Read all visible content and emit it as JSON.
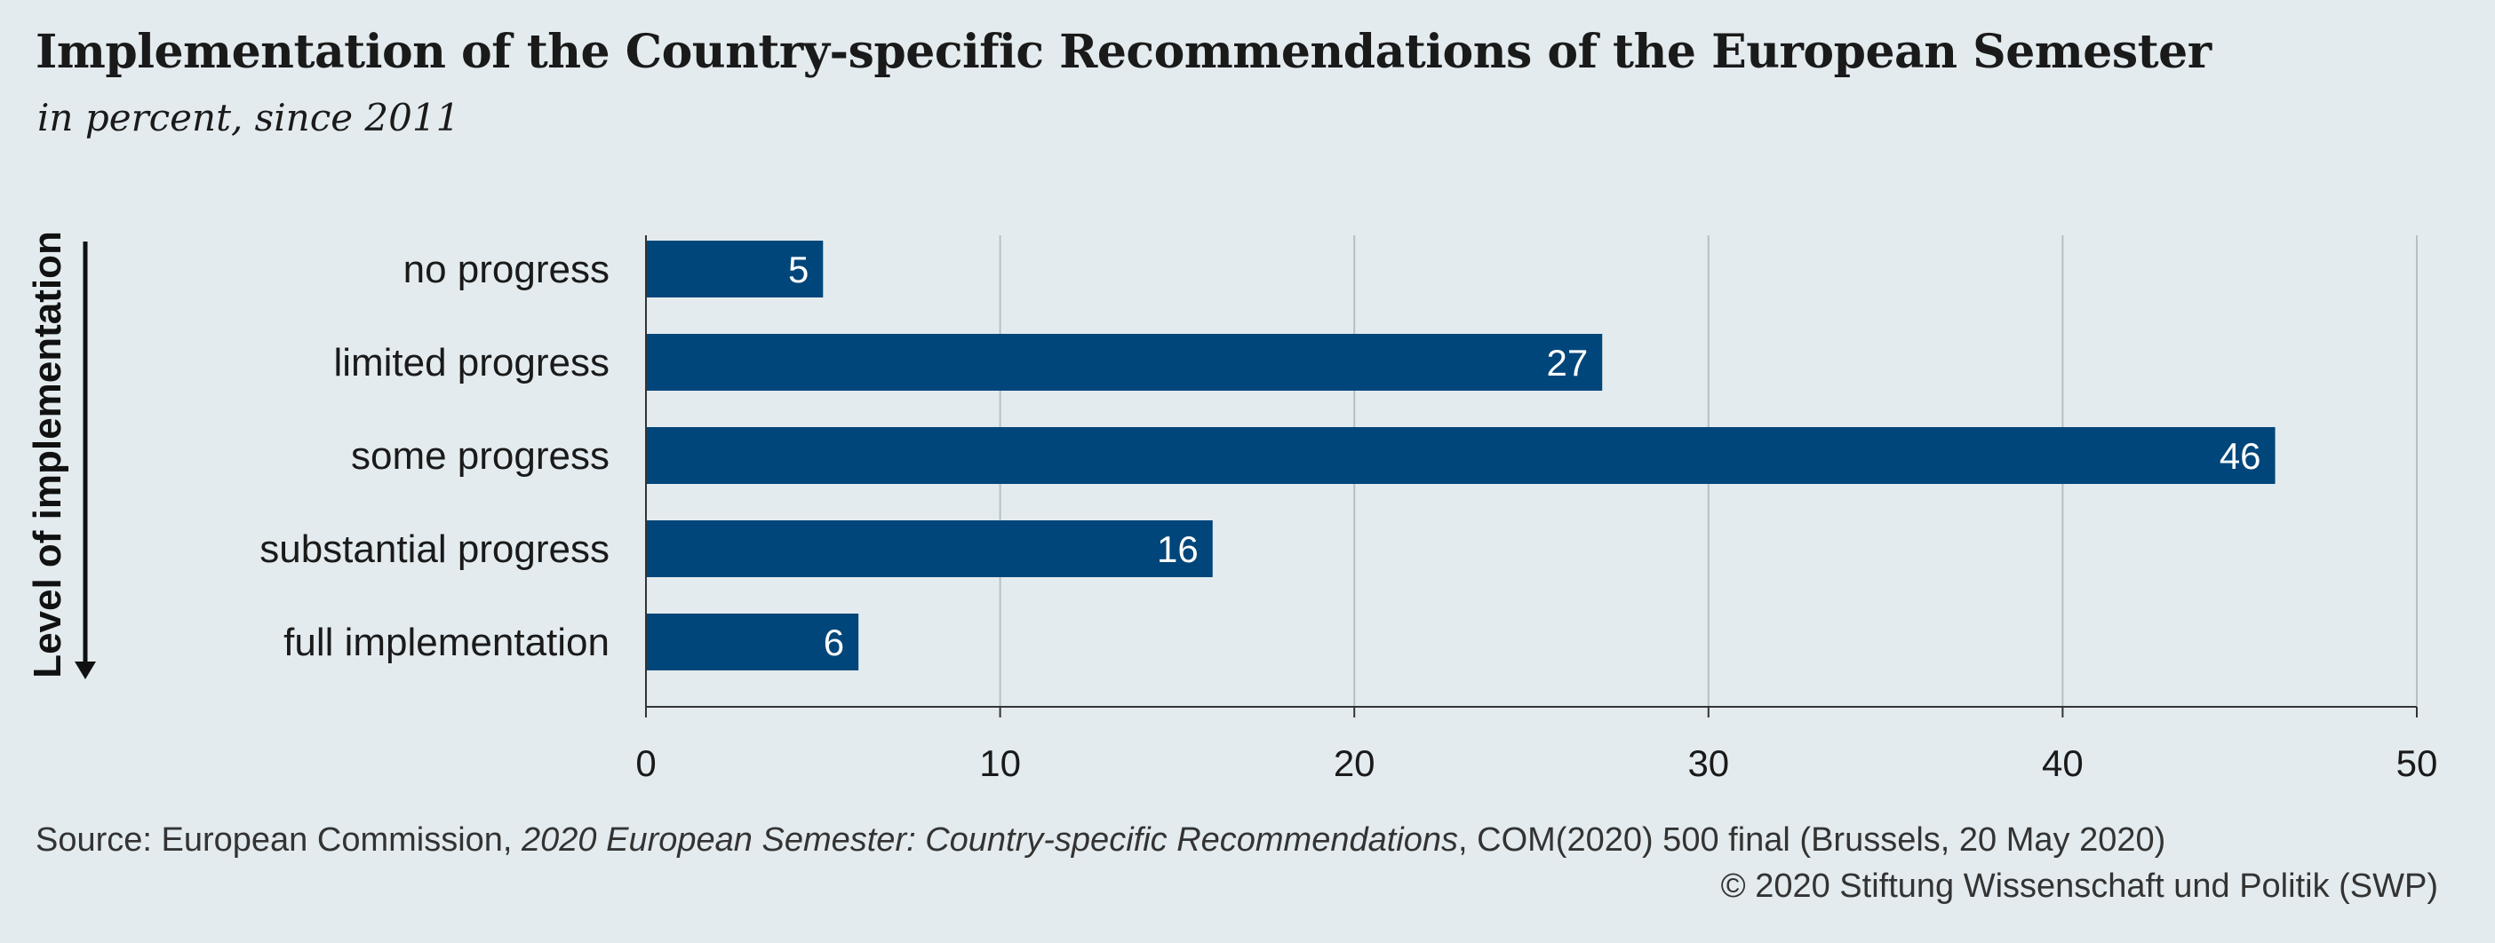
{
  "title": "Implementation of the Country-specific Recommendations of the European Semester",
  "subtitle": "in percent, since 2011",
  "chart_data": {
    "type": "bar",
    "orientation": "horizontal",
    "categories": [
      "no progress",
      "limited progress",
      "some progress",
      "substantial progress",
      "full implementation"
    ],
    "values": [
      5,
      27,
      46,
      16,
      6
    ],
    "ylabel": "Level of implementation",
    "xlim": [
      0,
      50
    ],
    "xticks": [
      0,
      10,
      20,
      30,
      40,
      50
    ],
    "grid": true,
    "bar_color": "#00467a",
    "data_labels": true
  },
  "source": {
    "prefix": "Source: European Commission, ",
    "italic_part": "2020 European Semester: Country-specific Recommendations",
    "suffix": ", COM(2020) 500 final (Brussels, 20 May 2020)"
  },
  "copyright": "© 2020 Stiftung Wissenschaft und Politik (SWP)",
  "colors": {
    "background": "#e3ebee",
    "bar": "#00467a",
    "grid": "#b5c0c5"
  }
}
